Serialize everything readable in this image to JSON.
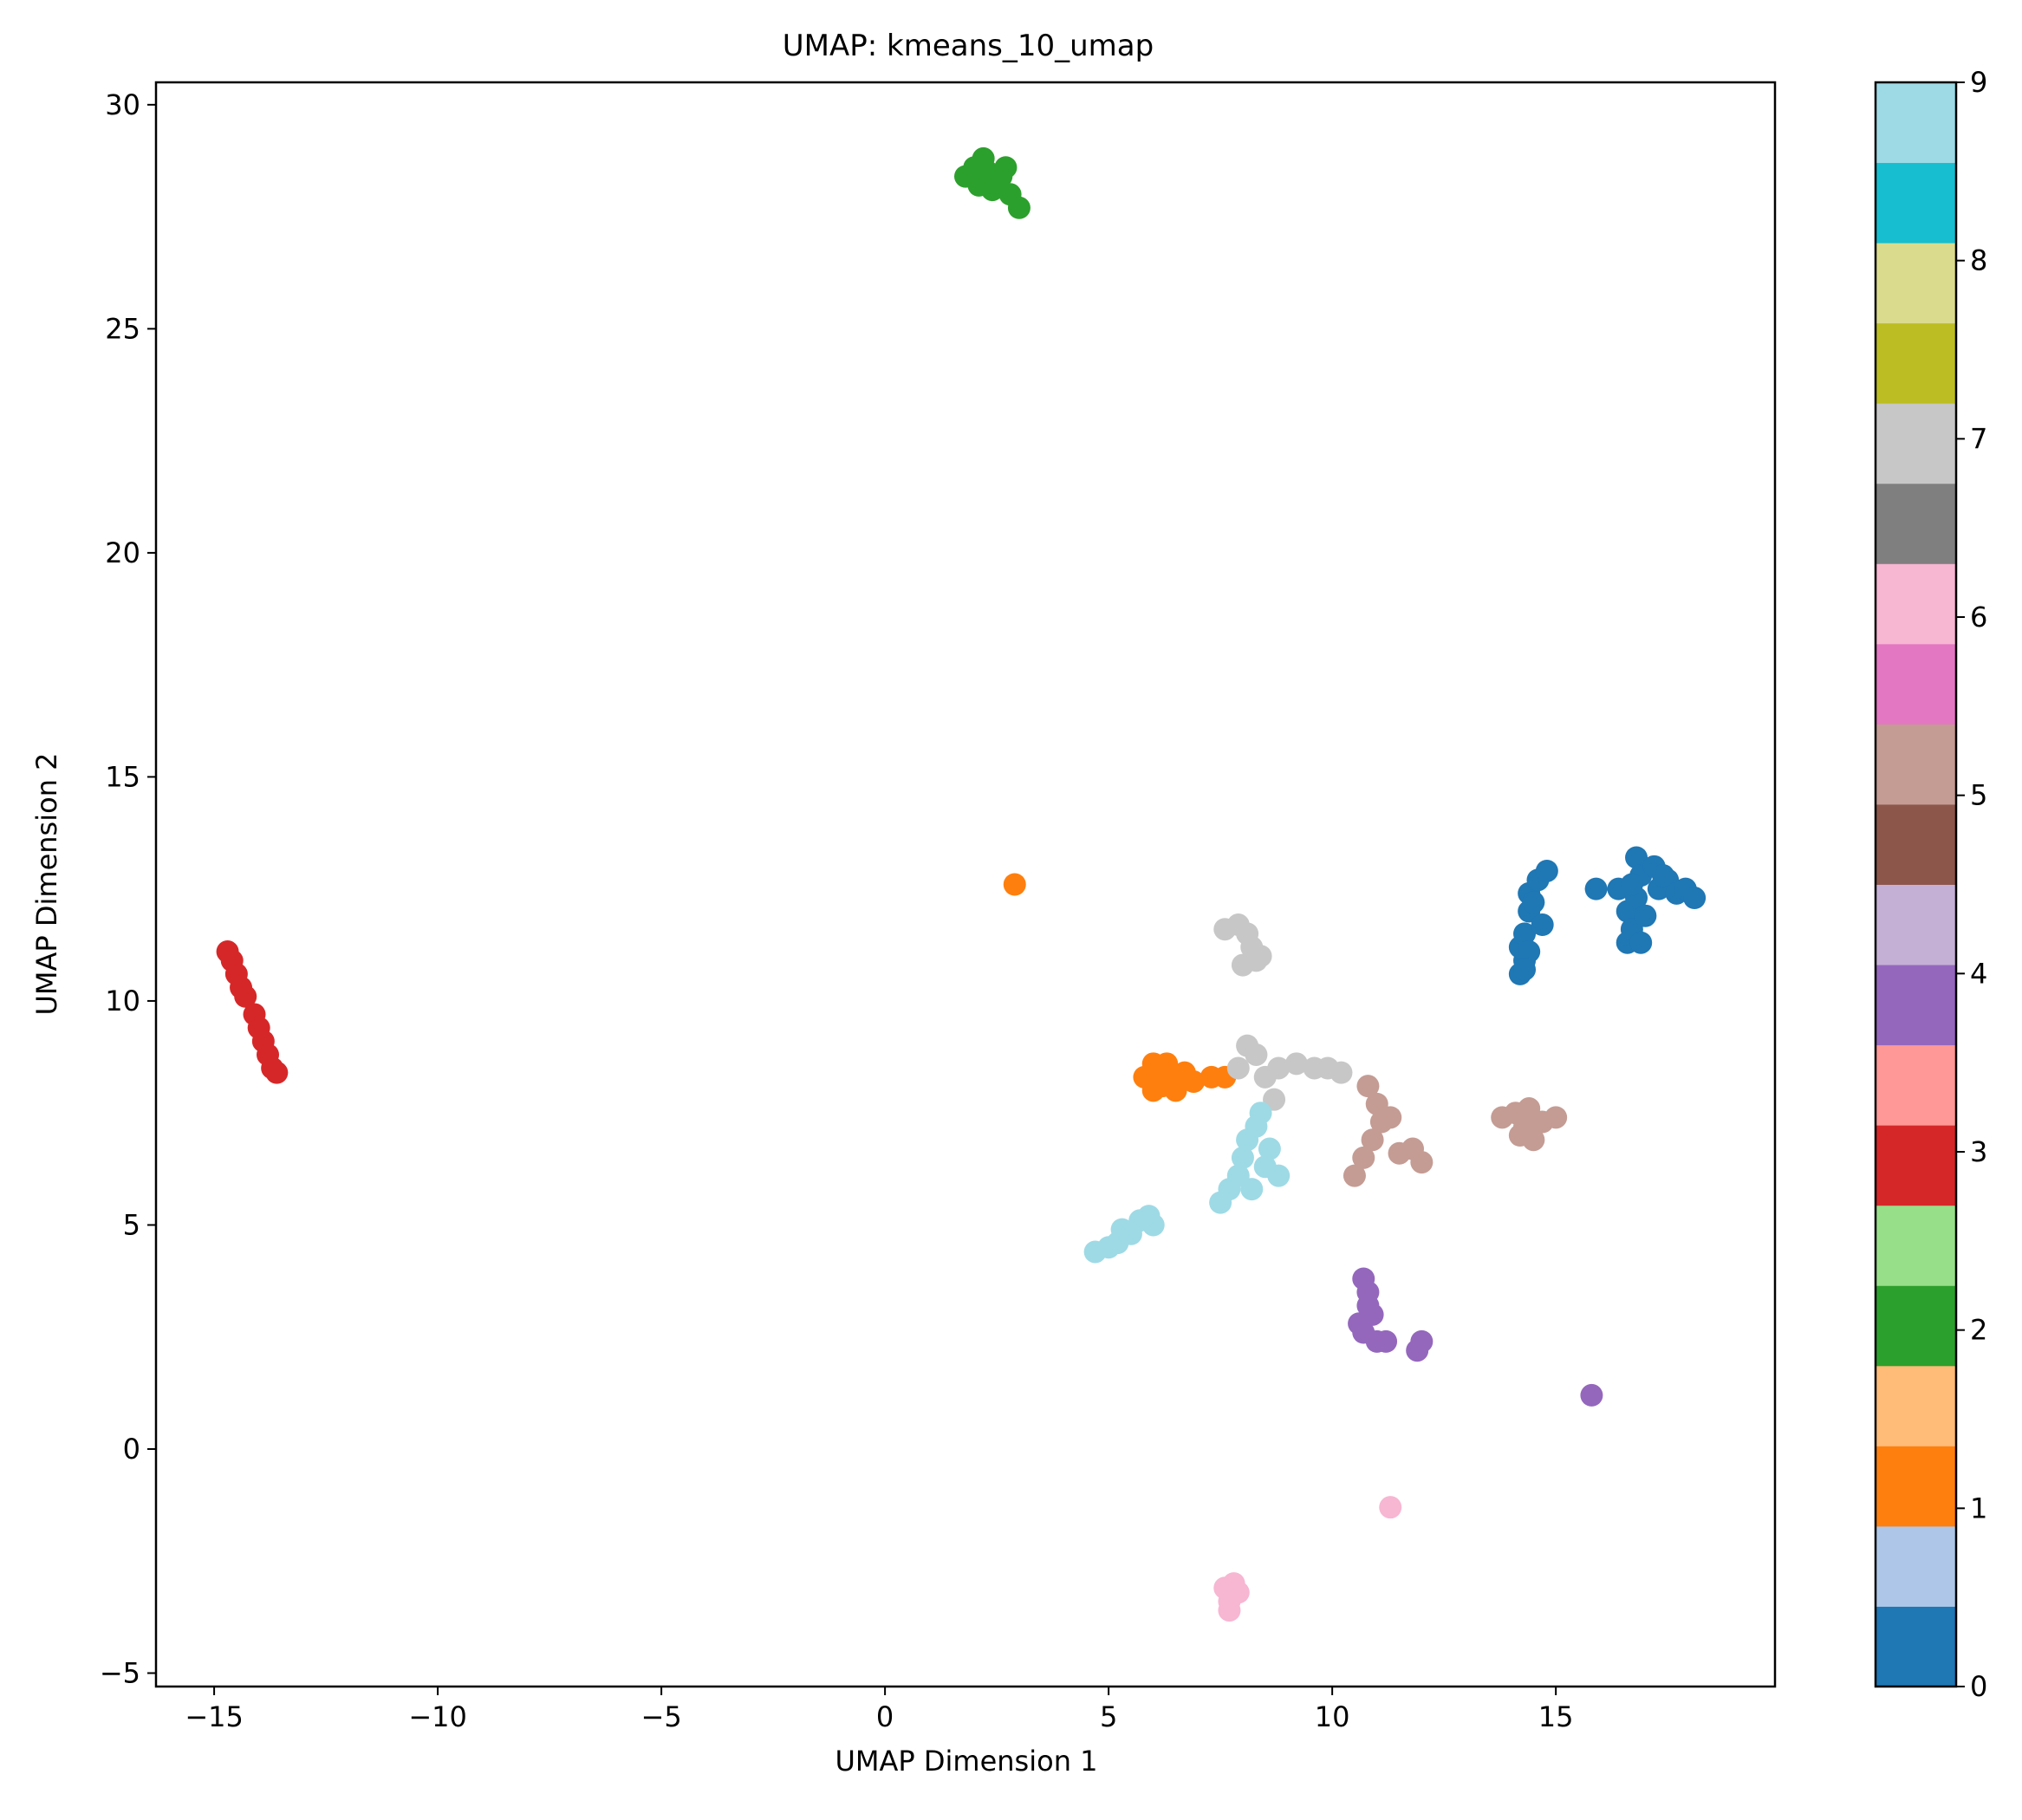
{
  "chart_data": {
    "type": "scatter",
    "title": "UMAP: kmeans_10_umap",
    "xlabel": "UMAP Dimension 1",
    "ylabel": "UMAP Dimension 2",
    "xlim": [
      -16.3,
      19.9
    ],
    "ylim": [
      -5.3,
      30.5
    ],
    "xticks": [
      -15,
      -10,
      -5,
      0,
      5,
      10,
      15
    ],
    "xtick_labels": [
      "−15",
      "−10",
      "−5",
      "0",
      "5",
      "10",
      "15"
    ],
    "yticks": [
      -5,
      0,
      5,
      10,
      15,
      20,
      25,
      30
    ],
    "ytick_labels": [
      "−5",
      "0",
      "5",
      "10",
      "15",
      "20",
      "25",
      "30"
    ],
    "grid": false,
    "colorbar": {
      "colormap": "tab20",
      "range": [
        0,
        9
      ],
      "ticks": [
        0,
        1,
        2,
        3,
        4,
        5,
        6,
        7,
        8,
        9
      ],
      "tick_labels": [
        "0",
        "1",
        "2",
        "3",
        "4",
        "5",
        "6",
        "7",
        "8",
        "9"
      ],
      "colors": [
        "#1f77b4",
        "#aec7e8",
        "#ff7f0e",
        "#ffbb78",
        "#2ca02c",
        "#98df8a",
        "#d62728",
        "#ff9896",
        "#9467bd",
        "#c5b0d5",
        "#8c564b",
        "#c49c94",
        "#e377c2",
        "#f7b6d2",
        "#7f7f7f",
        "#c7c7c7",
        "#bcbd22",
        "#dbdb8d",
        "#17becf",
        "#9edae5"
      ]
    },
    "clusters": [
      {
        "label": 0,
        "color": "#1f77b4",
        "points": [
          [
            14.2,
            10.6
          ],
          [
            14.3,
            10.9
          ],
          [
            14.2,
            11.2
          ],
          [
            14.3,
            11.5
          ],
          [
            14.4,
            11.1
          ],
          [
            14.3,
            10.7
          ],
          [
            14.4,
            12.0
          ],
          [
            14.4,
            12.4
          ],
          [
            14.5,
            12.2
          ],
          [
            14.6,
            12.7
          ],
          [
            14.8,
            12.9
          ],
          [
            14.7,
            11.7
          ],
          [
            15.9,
            12.5
          ],
          [
            16.4,
            12.5
          ],
          [
            16.6,
            11.3
          ],
          [
            16.6,
            12.0
          ],
          [
            16.7,
            11.6
          ],
          [
            16.8,
            13.2
          ],
          [
            16.9,
            12.8
          ],
          [
            16.8,
            12.3
          ],
          [
            16.9,
            11.3
          ],
          [
            17.0,
            11.9
          ],
          [
            17.2,
            13.0
          ],
          [
            17.3,
            12.5
          ],
          [
            17.5,
            12.7
          ],
          [
            17.7,
            12.4
          ],
          [
            17.9,
            12.5
          ],
          [
            18.1,
            12.3
          ],
          [
            17.4,
            12.8
          ],
          [
            16.7,
            12.6
          ]
        ]
      },
      {
        "label": 1,
        "color": "#ff7f0e",
        "points": [
          [
            2.9,
            12.6
          ],
          [
            5.8,
            8.3
          ],
          [
            6.0,
            8.6
          ],
          [
            6.2,
            8.1
          ],
          [
            6.1,
            8.5
          ],
          [
            6.4,
            8.3
          ],
          [
            6.5,
            8.0
          ],
          [
            6.7,
            8.4
          ],
          [
            6.9,
            8.2
          ],
          [
            7.3,
            8.3
          ],
          [
            7.6,
            8.3
          ],
          [
            6.0,
            8.0
          ],
          [
            6.3,
            8.6
          ]
        ]
      },
      {
        "label": 2,
        "color": "#2ca02c",
        "points": [
          [
            1.8,
            28.4
          ],
          [
            2.0,
            28.6
          ],
          [
            2.1,
            28.2
          ],
          [
            2.2,
            28.8
          ],
          [
            2.3,
            28.5
          ],
          [
            2.4,
            28.1
          ],
          [
            2.6,
            28.4
          ],
          [
            2.7,
            28.6
          ],
          [
            2.8,
            28.0
          ],
          [
            3.0,
            27.7
          ]
        ]
      },
      {
        "label": 3,
        "color": "#d62728",
        "points": [
          [
            -14.7,
            11.1
          ],
          [
            -14.6,
            10.9
          ],
          [
            -14.5,
            10.6
          ],
          [
            -14.4,
            10.3
          ],
          [
            -14.3,
            10.1
          ],
          [
            -14.1,
            9.7
          ],
          [
            -14.0,
            9.4
          ],
          [
            -13.9,
            9.1
          ],
          [
            -13.8,
            8.8
          ],
          [
            -13.7,
            8.5
          ],
          [
            -13.6,
            8.4
          ]
        ]
      },
      {
        "label": 4,
        "color": "#9467bd",
        "points": [
          [
            10.7,
            3.8
          ],
          [
            10.8,
            3.5
          ],
          [
            10.8,
            3.2
          ],
          [
            10.9,
            3.0
          ],
          [
            10.6,
            2.8
          ],
          [
            10.7,
            2.6
          ],
          [
            11.0,
            2.4
          ],
          [
            11.2,
            2.4
          ],
          [
            11.9,
            2.2
          ],
          [
            12.0,
            2.4
          ],
          [
            15.8,
            1.2
          ]
        ]
      },
      {
        "label": 5,
        "color": "#c49c94",
        "points": [
          [
            10.5,
            6.1
          ],
          [
            10.7,
            6.5
          ],
          [
            10.9,
            6.9
          ],
          [
            11.1,
            7.3
          ],
          [
            11.0,
            7.7
          ],
          [
            10.8,
            8.1
          ],
          [
            11.3,
            7.4
          ],
          [
            11.5,
            6.6
          ],
          [
            11.8,
            6.7
          ],
          [
            12.0,
            6.4
          ],
          [
            13.8,
            7.4
          ],
          [
            14.1,
            7.5
          ],
          [
            14.3,
            7.2
          ],
          [
            14.4,
            7.6
          ],
          [
            14.5,
            6.9
          ],
          [
            14.7,
            7.3
          ],
          [
            15.0,
            7.4
          ],
          [
            14.2,
            7.0
          ]
        ]
      },
      {
        "label": 6,
        "color": "#f7b6d2",
        "points": [
          [
            11.3,
            -1.3
          ],
          [
            7.6,
            -3.1
          ],
          [
            7.7,
            -3.4
          ],
          [
            7.8,
            -3.0
          ],
          [
            7.9,
            -3.2
          ],
          [
            7.7,
            -3.6
          ]
        ]
      },
      {
        "label": 7,
        "color": "#c7c7c7",
        "points": [
          [
            7.6,
            11.6
          ],
          [
            7.9,
            11.7
          ],
          [
            8.1,
            11.5
          ],
          [
            8.2,
            11.2
          ],
          [
            8.3,
            10.9
          ],
          [
            8.0,
            10.8
          ],
          [
            8.4,
            11.0
          ],
          [
            8.1,
            9.0
          ],
          [
            8.3,
            8.8
          ],
          [
            7.9,
            8.5
          ],
          [
            8.5,
            8.3
          ],
          [
            8.8,
            8.5
          ],
          [
            9.2,
            8.6
          ],
          [
            9.6,
            8.5
          ],
          [
            9.9,
            8.5
          ],
          [
            10.2,
            8.4
          ],
          [
            8.7,
            7.8
          ]
        ]
      },
      {
        "label": 9,
        "color": "#9edae5",
        "points": [
          [
            4.7,
            4.4
          ],
          [
            5.0,
            4.5
          ],
          [
            5.2,
            4.6
          ],
          [
            5.3,
            4.9
          ],
          [
            5.5,
            4.8
          ],
          [
            5.7,
            5.1
          ],
          [
            5.9,
            5.2
          ],
          [
            6.0,
            5.0
          ],
          [
            7.5,
            5.5
          ],
          [
            7.7,
            5.8
          ],
          [
            7.9,
            6.1
          ],
          [
            8.0,
            6.5
          ],
          [
            8.1,
            6.9
          ],
          [
            8.3,
            7.2
          ],
          [
            8.4,
            7.5
          ],
          [
            8.2,
            5.8
          ],
          [
            8.5,
            6.3
          ],
          [
            8.6,
            6.7
          ],
          [
            8.8,
            6.1
          ]
        ]
      }
    ]
  }
}
